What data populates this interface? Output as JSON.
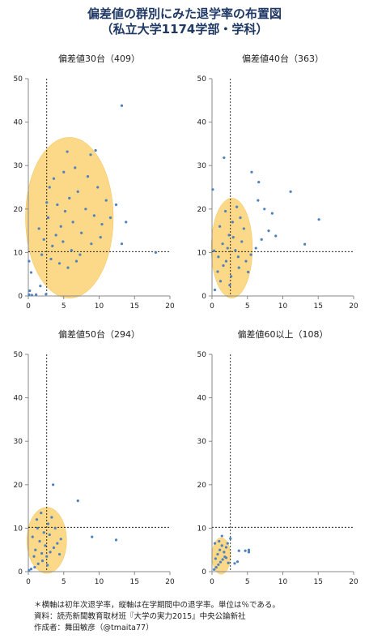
{
  "title": "偏差値の群別にみた退学率の布置図",
  "subtitle": "（私立大学1174学部・学科）",
  "notes": {
    "axes": "＊横軸は初年次退学率，縦軸は在学期間中の退学率。単位は％である。",
    "source": "資料：読売新聞教育取材班『大学の実力2015』中央公論新社",
    "author": "作成者：舞田敏彦（@tmaita77）"
  },
  "colors": {
    "points": "#4f81bd",
    "ellipse_fill": "#fbd274",
    "ellipse_stroke": "#f0c050",
    "axis": "#888888",
    "ref_line": "#000000"
  },
  "chart_data": [
    {
      "type": "scatter",
      "title": "偏差値30台（409）",
      "xlim": [
        0,
        20
      ],
      "ylim": [
        0,
        50
      ],
      "xticks": [
        0,
        5,
        10,
        15,
        20
      ],
      "yticks": [
        0,
        10,
        20,
        30,
        40,
        50
      ],
      "ref_x": 2.6,
      "ref_y": 10.2,
      "ellipse": {
        "cx": 5.8,
        "cy": 18.0,
        "rx": 6.2,
        "ry": 18.5
      },
      "points": [
        [
          13.2,
          43.8
        ],
        [
          9.5,
          33.5
        ],
        [
          5.5,
          33.2
        ],
        [
          8.8,
          32.5
        ],
        [
          13.8,
          17.0
        ],
        [
          13.2,
          12.0
        ],
        [
          18.0,
          10.0
        ],
        [
          2.5,
          0.4
        ],
        [
          1.1,
          0.3
        ],
        [
          0.5,
          0.2
        ],
        [
          0.1,
          0.3
        ],
        [
          0.2,
          1.2
        ],
        [
          0.4,
          5.4
        ],
        [
          1.7,
          2.3
        ],
        [
          0.1,
          8.0
        ],
        [
          3.0,
          25.0
        ],
        [
          4.1,
          21.0
        ],
        [
          5.2,
          19.5
        ],
        [
          6.3,
          17.0
        ],
        [
          7.5,
          14.5
        ],
        [
          2.2,
          13.0
        ],
        [
          3.4,
          11.5
        ],
        [
          4.6,
          16.0
        ],
        [
          5.8,
          22.5
        ],
        [
          7.0,
          24.0
        ],
        [
          8.1,
          20.0
        ],
        [
          9.3,
          18.5
        ],
        [
          10.4,
          16.5
        ],
        [
          2.8,
          18.0
        ],
        [
          3.9,
          14.0
        ],
        [
          4.9,
          12.5
        ],
        [
          6.1,
          10.5
        ],
        [
          7.3,
          9.5
        ],
        [
          1.5,
          15.5
        ],
        [
          2.6,
          21.5
        ],
        [
          3.6,
          27.0
        ],
        [
          5.0,
          28.5
        ],
        [
          6.6,
          29.5
        ],
        [
          8.4,
          27.5
        ],
        [
          9.8,
          25.0
        ],
        [
          11.0,
          22.0
        ],
        [
          1.9,
          9.5
        ],
        [
          3.2,
          8.5
        ],
        [
          4.4,
          7.5
        ],
        [
          5.6,
          6.5
        ],
        [
          6.8,
          8.0
        ],
        [
          8.9,
          12.0
        ],
        [
          10.2,
          13.5
        ],
        [
          11.6,
          18.0
        ],
        [
          12.4,
          21.0
        ]
      ]
    },
    {
      "type": "scatter",
      "title": "偏差値40台（363）",
      "xlim": [
        0,
        20
      ],
      "ylim": [
        0,
        50
      ],
      "xticks": [
        0,
        5,
        10,
        15,
        20
      ],
      "yticks": [
        0,
        10,
        20,
        30,
        40,
        50
      ],
      "ref_x": 2.6,
      "ref_y": 10.2,
      "ellipse": {
        "cx": 2.8,
        "cy": 11.0,
        "rx": 2.9,
        "ry": 11.5
      },
      "points": [
        [
          1.7,
          31.8
        ],
        [
          5.6,
          28.5
        ],
        [
          6.6,
          26.2
        ],
        [
          11.1,
          24.0
        ],
        [
          6.5,
          22.0
        ],
        [
          7.4,
          20.0
        ],
        [
          8.5,
          19.0
        ],
        [
          15.1,
          17.6
        ],
        [
          13.1,
          11.9
        ],
        [
          9.0,
          13.8
        ],
        [
          8.0,
          15.0
        ],
        [
          7.0,
          13.0
        ],
        [
          6.2,
          11.0
        ],
        [
          5.5,
          9.5
        ],
        [
          4.8,
          8.0
        ],
        [
          0.1,
          24.5
        ],
        [
          0.3,
          10.4
        ],
        [
          0.8,
          5.6
        ],
        [
          1.2,
          3.4
        ],
        [
          0.4,
          1.4
        ],
        [
          1.5,
          12.0
        ],
        [
          2.0,
          8.0
        ],
        [
          2.4,
          14.0
        ],
        [
          2.9,
          17.0
        ],
        [
          3.3,
          10.5
        ],
        [
          3.8,
          6.5
        ],
        [
          4.2,
          12.5
        ],
        [
          1.1,
          16.0
        ],
        [
          1.9,
          19.5
        ],
        [
          2.7,
          4.5
        ],
        [
          3.5,
          20.5
        ],
        [
          4.5,
          15.5
        ],
        [
          5.1,
          5.5
        ],
        [
          0.9,
          9.0
        ],
        [
          2.2,
          11.0
        ],
        [
          3.0,
          13.5
        ],
        [
          3.7,
          9.0
        ],
        [
          1.6,
          7.0
        ],
        [
          2.5,
          2.5
        ],
        [
          4.0,
          18.0
        ]
      ]
    },
    {
      "type": "scatter",
      "title": "偏差値50台（294）",
      "xlim": [
        0,
        20
      ],
      "ylim": [
        0,
        50
      ],
      "xticks": [
        0,
        5,
        10,
        15,
        20
      ],
      "yticks": [
        0,
        10,
        20,
        30,
        40,
        50
      ],
      "ref_x": 2.6,
      "ref_y": 10.2,
      "ellipse": {
        "cx": 2.6,
        "cy": 7.2,
        "rx": 2.8,
        "ry": 7.6
      },
      "points": [
        [
          3.5,
          20.0
        ],
        [
          7.0,
          16.3
        ],
        [
          9.0,
          8.0
        ],
        [
          12.4,
          7.3
        ],
        [
          0.1,
          0.3
        ],
        [
          0.4,
          0.6
        ],
        [
          0.9,
          1.0
        ],
        [
          1.4,
          1.8
        ],
        [
          2.0,
          2.5
        ],
        [
          2.6,
          3.5
        ],
        [
          3.1,
          4.5
        ],
        [
          3.6,
          5.5
        ],
        [
          4.1,
          6.5
        ],
        [
          4.6,
          7.5
        ],
        [
          1.0,
          5.0
        ],
        [
          1.6,
          7.0
        ],
        [
          2.2,
          9.0
        ],
        [
          2.8,
          11.0
        ],
        [
          3.3,
          12.5
        ],
        [
          1.2,
          12.0
        ],
        [
          1.8,
          13.5
        ],
        [
          0.6,
          8.0
        ],
        [
          1.3,
          10.0
        ],
        [
          2.4,
          6.0
        ],
        [
          3.0,
          8.5
        ],
        [
          3.8,
          10.0
        ],
        [
          4.4,
          4.0
        ],
        [
          0.8,
          3.5
        ],
        [
          1.9,
          4.2
        ],
        [
          2.7,
          1.5
        ]
      ]
    },
    {
      "type": "scatter",
      "title": "偏差値60以上（108）",
      "xlim": [
        0,
        20
      ],
      "ylim": [
        0,
        50
      ],
      "xticks": [
        0,
        5,
        10,
        15,
        20
      ],
      "yticks": [
        0,
        10,
        20,
        30,
        40,
        50
      ],
      "ref_x": 2.6,
      "ref_y": 10.2,
      "ellipse": {
        "cx": 1.3,
        "cy": 3.6,
        "rx": 1.3,
        "ry": 4.2
      },
      "points": [
        [
          1.4,
          8.2
        ],
        [
          2.6,
          7.6
        ],
        [
          3.8,
          4.8
        ],
        [
          4.7,
          4.8
        ],
        [
          5.2,
          5.0
        ],
        [
          5.2,
          4.5
        ],
        [
          3.6,
          2.3
        ],
        [
          3.2,
          1.9
        ],
        [
          2.0,
          5.6
        ],
        [
          0.3,
          0.5
        ],
        [
          0.6,
          1.0
        ],
        [
          0.9,
          1.6
        ],
        [
          1.2,
          2.2
        ],
        [
          1.5,
          2.8
        ],
        [
          1.8,
          3.4
        ],
        [
          0.5,
          3.0
        ],
        [
          0.8,
          4.0
        ],
        [
          1.1,
          5.0
        ],
        [
          1.4,
          6.0
        ],
        [
          1.7,
          4.5
        ],
        [
          2.0,
          3.2
        ],
        [
          2.3,
          2.0
        ],
        [
          0.4,
          6.5
        ],
        [
          1.0,
          7.0
        ],
        [
          2.2,
          6.5
        ]
      ]
    }
  ]
}
